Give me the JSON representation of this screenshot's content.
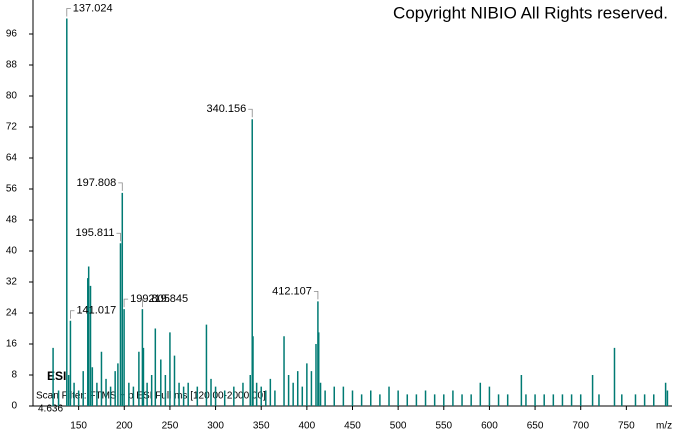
{
  "chart_data": {
    "type": "stick",
    "copyright": "Copyright NIBIO All Rights reserved.",
    "ionization": "ESI",
    "scan_filter": "Scan Filter: FTMS + p ESI Full ms [120.00-2000.00]",
    "retention_time": "4.636",
    "xlabel": "m/z",
    "color": "#007a73",
    "label_color": "#1a1a9c",
    "xlim": [
      100,
      800
    ],
    "xticks": [
      150,
      200,
      250,
      300,
      350,
      400,
      450,
      500,
      550,
      600,
      650,
      700,
      750
    ],
    "ylim": [
      0,
      100
    ],
    "yticks": [
      0,
      8,
      16,
      24,
      32,
      40,
      48,
      56,
      64,
      72,
      80,
      88,
      96
    ],
    "labeled_peaks": {
      "x": [
        137.024,
        141.017,
        195.811,
        197.808,
        199.805,
        219.845,
        340.156,
        412.107
      ],
      "values": [
        100,
        22,
        42,
        55,
        25,
        25,
        74,
        27
      ]
    },
    "peaks": {
      "x": [
        122,
        128,
        139,
        145,
        150,
        155,
        160,
        161,
        163,
        165,
        170,
        175,
        180,
        185,
        190,
        193,
        205,
        210,
        216,
        221,
        225,
        230,
        234,
        240,
        245,
        250,
        255,
        260,
        265,
        270,
        280,
        290,
        295,
        300,
        310,
        320,
        330,
        338,
        341,
        345,
        350,
        355,
        360,
        365,
        375,
        380,
        385,
        390,
        395,
        400,
        405,
        410,
        413,
        415,
        420,
        430,
        440,
        450,
        460,
        470,
        480,
        490,
        500,
        510,
        520,
        530,
        540,
        550,
        560,
        570,
        580,
        590,
        600,
        610,
        620,
        635,
        640,
        650,
        660,
        670,
        680,
        690,
        700,
        713,
        720,
        737,
        745,
        760,
        770,
        780,
        793,
        795
      ],
      "values": [
        15,
        4,
        8,
        6,
        4,
        9,
        33,
        36,
        31,
        10,
        6,
        14,
        7,
        5,
        9,
        11,
        6,
        5,
        14,
        15,
        6,
        8,
        20,
        12,
        8,
        19,
        13,
        6,
        5,
        6,
        5,
        21,
        7,
        5,
        4,
        5,
        6,
        8,
        18,
        6,
        5,
        4,
        7,
        4,
        18,
        8,
        6,
        9,
        5,
        11,
        9,
        16,
        19,
        6,
        4,
        5,
        5,
        4,
        3,
        4,
        3,
        5,
        4,
        3,
        3,
        4,
        3,
        3,
        4,
        3,
        3,
        6,
        5,
        3,
        3,
        8,
        3,
        3,
        3,
        3,
        3,
        3,
        3,
        8,
        3,
        15,
        3,
        3,
        3,
        3,
        6,
        4
      ]
    }
  }
}
